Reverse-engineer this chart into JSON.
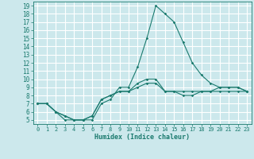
{
  "xlabel": "Humidex (Indice chaleur)",
  "ylabel": "",
  "background_color": "#cce8ec",
  "grid_color": "#ffffff",
  "line_color": "#1a7a6e",
  "xlim": [
    -0.5,
    23.5
  ],
  "ylim": [
    4.5,
    19.5
  ],
  "xticks": [
    0,
    1,
    2,
    3,
    4,
    5,
    6,
    7,
    8,
    9,
    10,
    11,
    12,
    13,
    14,
    15,
    16,
    17,
    18,
    19,
    20,
    21,
    22,
    23
  ],
  "yticks": [
    5,
    6,
    7,
    8,
    9,
    10,
    11,
    12,
    13,
    14,
    15,
    16,
    17,
    18,
    19
  ],
  "line1_x": [
    0,
    1,
    2,
    3,
    4,
    5,
    6,
    7,
    8,
    9,
    10,
    11,
    12,
    13,
    14,
    15,
    16,
    17,
    18,
    19,
    20,
    21,
    22,
    23
  ],
  "line1_y": [
    7,
    7,
    6,
    5,
    5,
    5,
    5,
    7,
    7.5,
    9,
    9,
    11.5,
    15,
    19,
    18,
    17,
    14.5,
    12,
    10.5,
    9.5,
    9,
    9,
    9,
    8.5
  ],
  "line2_x": [
    0,
    1,
    2,
    3,
    4,
    5,
    6,
    7,
    8,
    9,
    10,
    11,
    12,
    13,
    14,
    15,
    16,
    17,
    18,
    19,
    20,
    21,
    22,
    23
  ],
  "line2_y": [
    7,
    7,
    6,
    5.5,
    5,
    5,
    5.5,
    7.5,
    8,
    8.5,
    8.5,
    9,
    9.5,
    9.5,
    8.5,
    8.5,
    8.5,
    8.5,
    8.5,
    8.5,
    9,
    9,
    9,
    8.5
  ],
  "line3_x": [
    0,
    1,
    2,
    3,
    4,
    5,
    6,
    7,
    8,
    9,
    10,
    11,
    12,
    13,
    14,
    15,
    16,
    17,
    18,
    19,
    20,
    21,
    22,
    23
  ],
  "line3_y": [
    7,
    7,
    6,
    5.5,
    5,
    5,
    5.5,
    7.5,
    8,
    8.5,
    8.5,
    9.5,
    10,
    10,
    8.5,
    8.5,
    8,
    8,
    8.5,
    8.5,
    8.5,
    8.5,
    8.5,
    8.5
  ]
}
